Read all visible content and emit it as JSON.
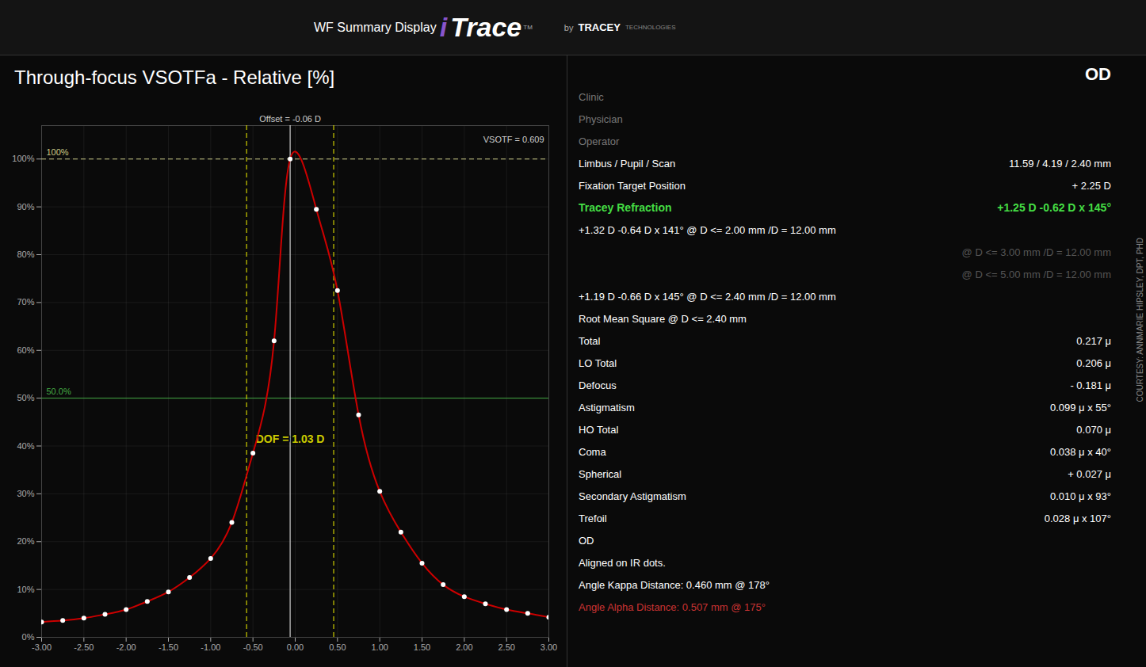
{
  "chart_data": {
    "type": "line",
    "title": "Through-focus VSOTFa  - Relative [%]",
    "x": [
      -3.0,
      -2.75,
      -2.5,
      -2.25,
      -2.0,
      -1.75,
      -1.5,
      -1.25,
      -1.0,
      -0.75,
      -0.5,
      -0.25,
      -0.06,
      0.25,
      0.5,
      0.75,
      1.0,
      1.25,
      1.5,
      1.75,
      2.0,
      2.25,
      2.5,
      2.75,
      3.0
    ],
    "series": [
      {
        "type": "line",
        "color": "#cc0000",
        "values": [
          3.2,
          3.5,
          4.0,
          4.8,
          5.8,
          7.5,
          9.5,
          12.5,
          16.5,
          24.0,
          38.5,
          62.0,
          100.0,
          89.5,
          72.5,
          46.5,
          30.5,
          22.0,
          15.5,
          11.0,
          8.5,
          7.0,
          5.8,
          5.0,
          4.2
        ]
      },
      {
        "type": "scatter",
        "color": "#ffffff",
        "marker": "circle",
        "values": [
          3.2,
          3.5,
          4.0,
          4.8,
          5.8,
          7.5,
          9.5,
          12.5,
          16.5,
          24.0,
          38.5,
          62.0,
          100.0,
          89.5,
          72.5,
          46.5,
          30.5,
          22.0,
          15.5,
          11.0,
          8.5,
          7.0,
          5.8,
          5.0,
          4.2
        ]
      }
    ],
    "xlim": [
      -3.0,
      3.0
    ],
    "xticks": [
      {
        "value": -3.0,
        "label": "-3.00"
      },
      {
        "value": -2.5,
        "label": "-2.50"
      },
      {
        "value": -2.0,
        "label": "-2.00"
      },
      {
        "value": -1.5,
        "label": "-1.50"
      },
      {
        "value": -1.0,
        "label": "-1.00"
      },
      {
        "value": -0.5,
        "label": "-0.50"
      },
      {
        "value": 0.0,
        "label": "0.00"
      },
      {
        "value": 0.5,
        "label": "0.50"
      },
      {
        "value": 1.0,
        "label": "1.00"
      },
      {
        "value": 1.5,
        "label": "1.50"
      },
      {
        "value": 2.0,
        "label": "2.00"
      },
      {
        "value": 2.5,
        "label": "2.50"
      },
      {
        "value": 3.0,
        "label": "3.00"
      }
    ],
    "ylim": [
      0,
      107
    ],
    "yticks": [
      {
        "value": 0,
        "label": "0%"
      },
      {
        "value": 10,
        "label": "10%"
      },
      {
        "value": 20,
        "label": "20%"
      },
      {
        "value": 30,
        "label": "30%"
      },
      {
        "value": 40,
        "label": "40%"
      },
      {
        "value": 50,
        "label": "50%"
      },
      {
        "value": 60,
        "label": "60%"
      },
      {
        "value": 70,
        "label": "70%"
      },
      {
        "value": 80,
        "label": "80%"
      },
      {
        "value": 90,
        "label": "90%"
      },
      {
        "value": 100,
        "label": "100%"
      }
    ],
    "grid": true,
    "annotations": [
      {
        "type": "hline",
        "y": 100,
        "text": "100%",
        "color": "#cccc88",
        "line_style": "dashed"
      },
      {
        "type": "corner",
        "text": "VSOTF = 0.609",
        "color": "#cccccc"
      },
      {
        "type": "hline",
        "y": 50,
        "text": "50.0%",
        "color": "#44aa44",
        "line_style": "solid"
      },
      {
        "type": "vline",
        "x": [
          -0.06
        ],
        "text": "Offset = -0.06 D",
        "color": "#cccccc",
        "line_style": "solid"
      },
      {
        "type": "vline",
        "x": [
          -0.575,
          0.455
        ],
        "text": "DOF = 1.03 D",
        "color": "#cccc00",
        "line_style": "dashed"
      },
      {
        "type": "header",
        "text": "WF Summary Display",
        "color": "#ffffff"
      },
      {
        "type": "header",
        "text": "i",
        "color": "#8855cc"
      },
      {
        "type": "header",
        "text": "Trace",
        "color": "#ffffff"
      },
      {
        "type": "header",
        "text": "TM",
        "color": "#aaaaaa"
      },
      {
        "type": "header",
        "text": "by",
        "color": "#aaaaaa"
      },
      {
        "type": "header",
        "text": "TRACEY",
        "color": "#ffffff"
      },
      {
        "type": "header",
        "text": "TECHNOLOGIES",
        "color": "#888888"
      },
      {
        "type": "panel",
        "text": [
          "OD"
        ],
        "color": "#ffffff"
      },
      {
        "type": "panel",
        "text": [
          "Clinic"
        ],
        "color": "#777777"
      },
      {
        "type": "panel",
        "text": [
          "Physician"
        ],
        "color": "#777777"
      },
      {
        "type": "panel",
        "text": [
          "Operator"
        ],
        "color": "#777777"
      },
      {
        "type": "panel",
        "text": [
          "Limbus / Pupil / Scan",
          "11.59 / 4.19 / 2.40 mm"
        ],
        "color": "#ffffff"
      },
      {
        "type": "panel",
        "text": [
          "Fixation Target Position",
          "+ 2.25 D"
        ],
        "color": "#ffffff"
      },
      {
        "type": "panel",
        "text": [
          "Tracey Refraction",
          "+1.25 D -0.62 D x 145°"
        ],
        "color": "#44dd44"
      },
      {
        "type": "panel",
        "text": [
          "+1.32 D   -0.64 D x 141° @ D <= 2.00 mm /D = 12.00 mm"
        ],
        "color": "#ffffff"
      },
      {
        "type": "panel",
        "text": [
          "@ D <= 3.00 mm /D = 12.00 mm"
        ],
        "color": "#555555"
      },
      {
        "type": "panel",
        "text": [
          "@ D <= 5.00 mm /D = 12.00 mm"
        ],
        "color": "#555555"
      },
      {
        "type": "panel",
        "text": [
          "+1.19 D   -0.66 D x 145° @ D <= 2.40 mm /D = 12.00 mm"
        ],
        "color": "#ffffff"
      },
      {
        "type": "panel",
        "text": [
          "Root Mean Square @ D <= 2.40 mm"
        ],
        "color": "#ffffff"
      },
      {
        "type": "panel",
        "text": [
          "Total",
          "0.217 μ"
        ],
        "color": "#ffffff"
      },
      {
        "type": "panel",
        "text": [
          "LO Total",
          "0.206 μ"
        ],
        "color": "#ffffff"
      },
      {
        "type": "panel",
        "text": [
          "Defocus",
          "- 0.181 μ"
        ],
        "color": "#ffffff"
      },
      {
        "type": "panel",
        "text": [
          "Astigmatism",
          "0.099 μ x  55°"
        ],
        "color": "#ffffff"
      },
      {
        "type": "panel",
        "text": [
          "HO Total",
          "0.070 μ"
        ],
        "color": "#ffffff"
      },
      {
        "type": "panel",
        "text": [
          "Coma",
          "0.038 μ x  40°"
        ],
        "color": "#ffffff"
      },
      {
        "type": "panel",
        "text": [
          "Spherical",
          "+ 0.027 μ"
        ],
        "color": "#ffffff"
      },
      {
        "type": "panel",
        "text": [
          "Secondary Astigmatism",
          "0.010 μ x  93°"
        ],
        "color": "#ffffff"
      },
      {
        "type": "panel",
        "text": [
          "Trefoil",
          "0.028 μ x 107°"
        ],
        "color": "#ffffff"
      },
      {
        "type": "panel",
        "text": [
          "OD"
        ],
        "color": "#ffffff"
      },
      {
        "type": "panel",
        "text": [
          "Aligned on IR dots."
        ],
        "color": "#ffffff"
      },
      {
        "type": "panel",
        "text": [
          "Angle Kappa Distance:  0.460 mm @ 178°"
        ],
        "color": "#ffffff"
      },
      {
        "type": "panel",
        "text": [
          "Angle Alpha Distance:   0.507 mm @ 175°"
        ],
        "color": "#cc3333"
      },
      {
        "type": "note",
        "text": "COURTESY: ANNMARIE HIPSLEY, DPT, PHD",
        "color": "#888888"
      }
    ]
  }
}
